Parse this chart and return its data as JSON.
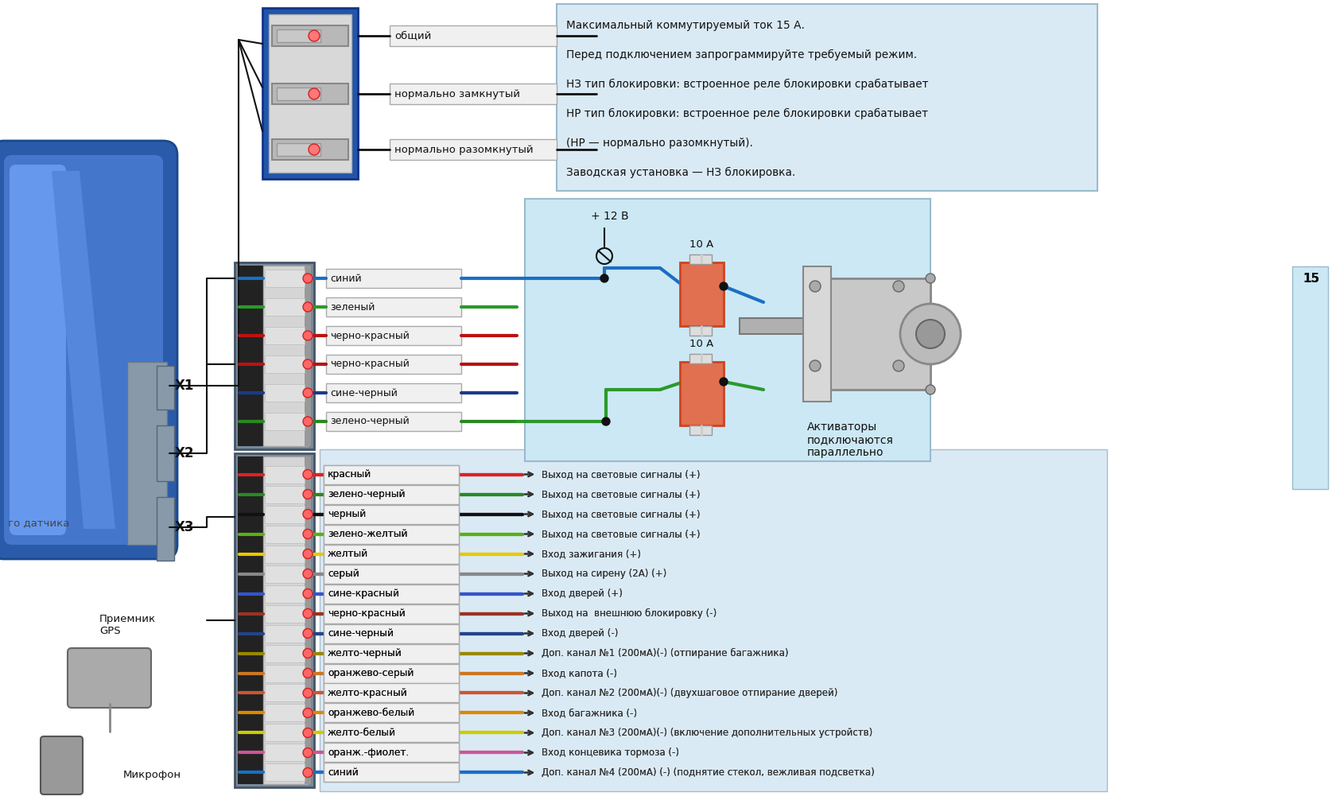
{
  "bg_color": "#ffffff",
  "info_box_color": "#daeaf5",
  "info_text_lines": [
    "Максимальный коммутируемый ток 15 А.",
    "Перед подключением запрограммируйте требуемый режим.",
    "НЗ тип блокировки: встроенное реле блокировки срабатывает",
    "НР тип блокировки: встроенное реле блокировки срабатывает",
    "(НР — нормально разомкнутый).",
    "Заводская установка — НЗ блокировка."
  ],
  "relay_labels": [
    "общий",
    "нормально замкнутый",
    "нормально разомкнутый"
  ],
  "x2_labels": [
    "синий",
    "зеленый",
    "черно-красный",
    "черно-красный",
    "сине-черный",
    "зелено-черный"
  ],
  "x2_colors": [
    "#1a6fc4",
    "#2a9a2a",
    "#bb1111",
    "#bb1111",
    "#1a3a88",
    "#2a8822"
  ],
  "x3_labels": [
    "красный",
    "зелено-черный",
    "черный",
    "зелено-желтый",
    "желтый",
    "серый",
    "сине-красный",
    "черно-красный",
    "сине-черный",
    "желто-черный",
    "оранжево-серый",
    "желто-красный",
    "оранжево-белый",
    "желто-белый",
    "оранж.-фиолет.",
    "синий"
  ],
  "x3_colors": [
    "#dd2222",
    "#2a8822",
    "#111111",
    "#5ab010",
    "#e8c800",
    "#888888",
    "#3355cc",
    "#993322",
    "#224488",
    "#998800",
    "#cc7722",
    "#cc5533",
    "#dd8800",
    "#cccc00",
    "#cc5599",
    "#1a6fc4"
  ],
  "x3_right_labels": [
    "Выход на световые сигналы (+)",
    "Выход на световые сигналы (+)",
    "Выход на световые сигналы (+)",
    "Выход на световые сигналы (+)",
    "Вход зажигания (+)",
    "Выход на сирену (2А) (+)",
    "Вход дверей (+)",
    "Выход на  внешнюю блокировку (-)",
    "Вход дверей (-)",
    "Доп. канал №1 (200мА)(-) (отпирание багажника)",
    "Вход капота (-)",
    "Доп. канал №2 (200мА)(-) (двухшаговое отпирание дверей)",
    "Вход багажника (-)",
    "Доп. канал №3 (200мА)(-) (включение дополнительных устройств)",
    "Вход концевика тормоза (-)",
    "Доп. канал №4 (200мА) (-) (поднятие стекол, вежливая подсветка)"
  ],
  "actuator_text": "Активаторы\nподключаются\nпараллельно",
  "fuse_text": "10 А",
  "plus12v_text": "+ 12 В",
  "gps_label": "Приемник\nGPS",
  "mic_label": "Микрофон",
  "sensor_label": "го датчика",
  "label_15": "15"
}
